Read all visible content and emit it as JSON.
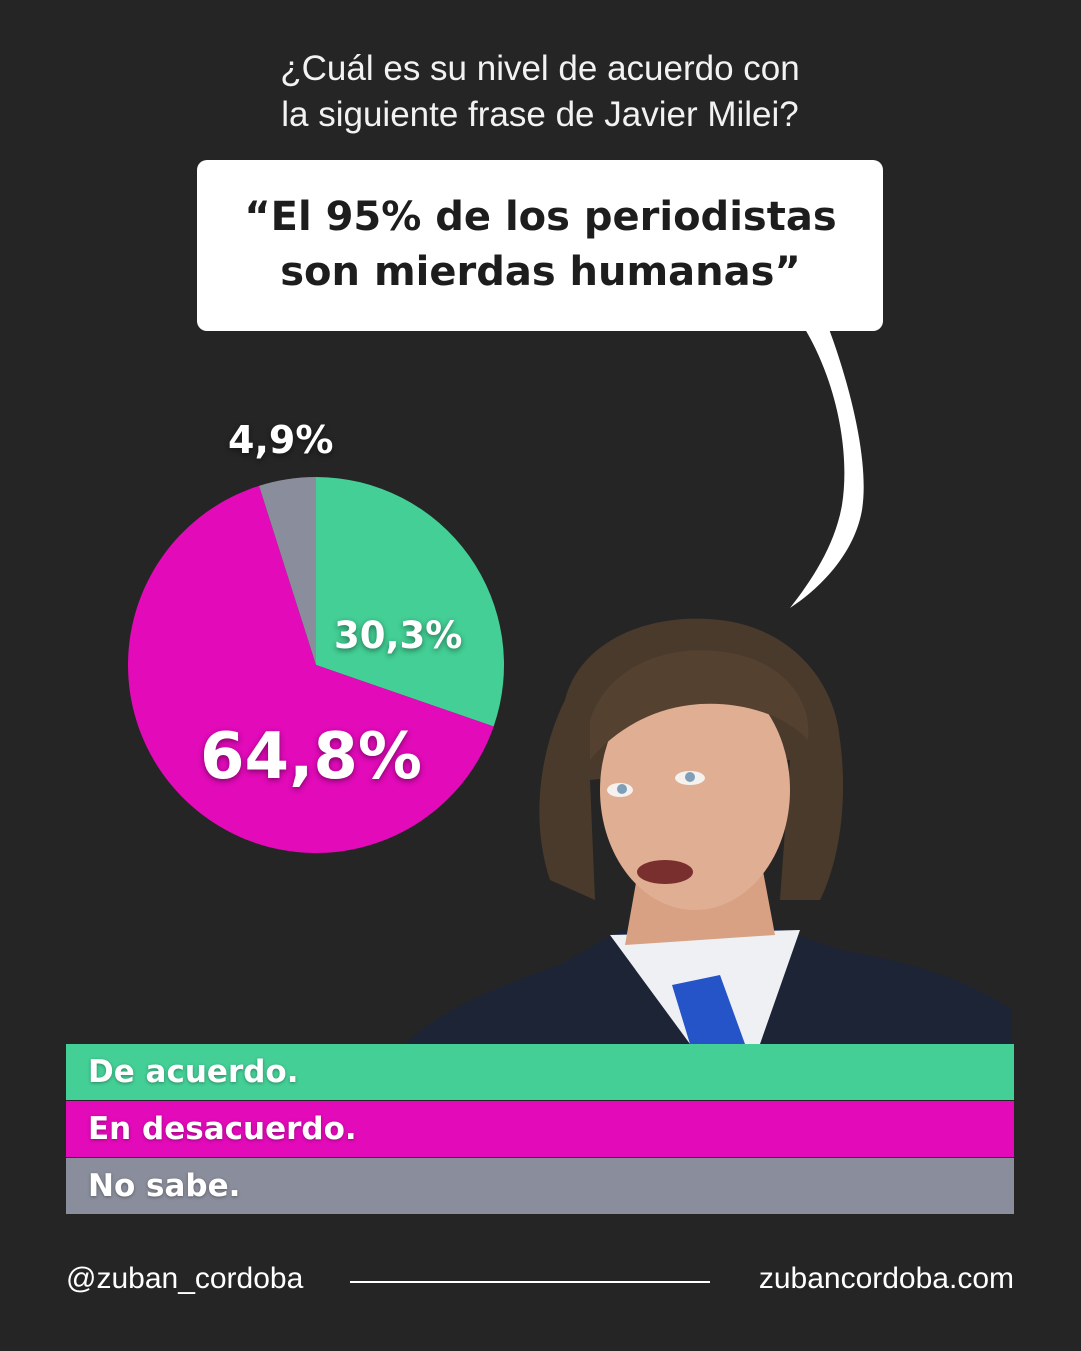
{
  "header": {
    "question_line1": "¿Cuál es su nivel de acuerdo con",
    "question_line2": "la siguiente frase de Javier Milei?"
  },
  "quote": {
    "line1": "“El 95% de los periodistas",
    "line2": "son mierdas humanas”"
  },
  "chart_data": {
    "type": "pie",
    "start_angle_deg": 0,
    "direction": "clockwise",
    "slices": [
      {
        "label": "De acuerdo.",
        "value": 30.3,
        "display": "30,3%",
        "color": "#43cf95"
      },
      {
        "label": "En desacuerdo.",
        "value": 64.8,
        "display": "64,8%",
        "color": "#e20ab9"
      },
      {
        "label": "No sabe.",
        "value": 4.9,
        "display": "4,9%",
        "color": "#8a8d9b"
      }
    ]
  },
  "legend": [
    {
      "label": "De acuerdo.",
      "color": "#43cf95"
    },
    {
      "label": "En desacuerdo.",
      "color": "#e20ab9"
    },
    {
      "label": "No sabe.",
      "color": "#8a8d9b"
    }
  ],
  "footer": {
    "handle": "@zuban_cordoba",
    "website": "zubancordoba.com"
  },
  "colors": {
    "background": "#252525",
    "bubble": "#ffffff"
  }
}
